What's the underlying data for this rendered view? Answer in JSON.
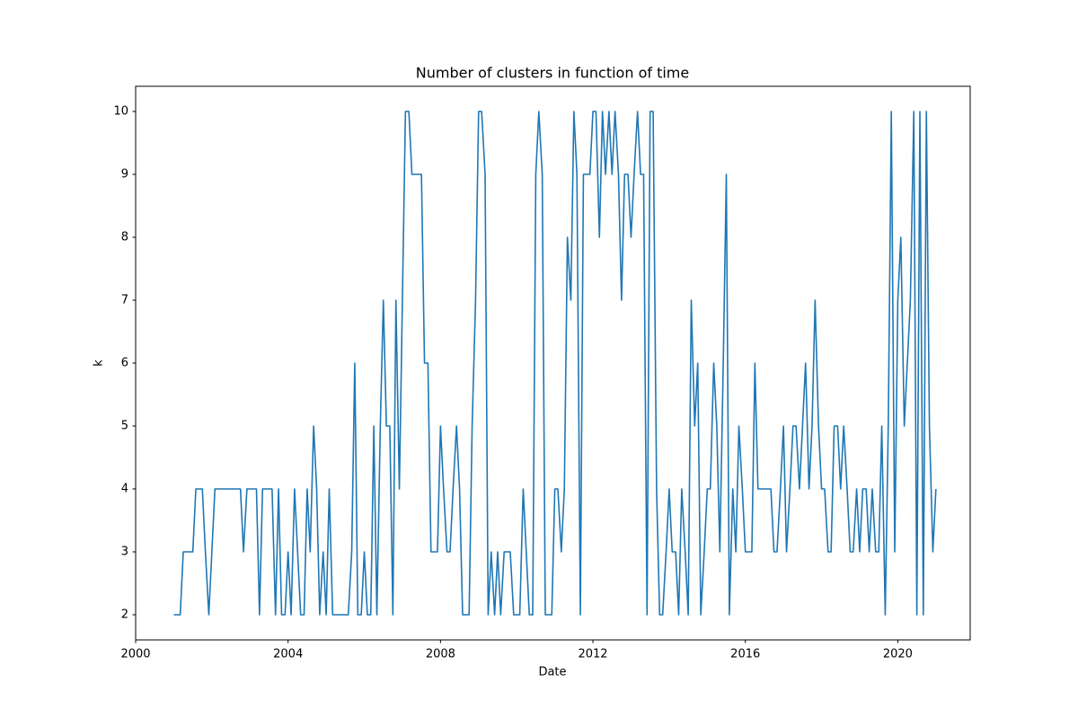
{
  "chart_data": {
    "type": "line",
    "title": "Number of clusters in function of time",
    "xlabel": "Date",
    "ylabel": "k",
    "x": [
      2001.0,
      2001.08,
      2001.17,
      2001.25,
      2001.33,
      2001.42,
      2001.5,
      2001.58,
      2001.67,
      2001.75,
      2001.83,
      2001.92,
      2002.0,
      2002.08,
      2002.17,
      2002.25,
      2002.33,
      2002.42,
      2002.5,
      2002.58,
      2002.67,
      2002.75,
      2002.83,
      2002.92,
      2003.0,
      2003.08,
      2003.17,
      2003.25,
      2003.33,
      2003.42,
      2003.5,
      2003.58,
      2003.67,
      2003.75,
      2003.83,
      2003.92,
      2004.0,
      2004.08,
      2004.17,
      2004.25,
      2004.33,
      2004.42,
      2004.5,
      2004.58,
      2004.67,
      2004.75,
      2004.83,
      2004.92,
      2005.0,
      2005.08,
      2005.17,
      2005.25,
      2005.33,
      2005.42,
      2005.5,
      2005.58,
      2005.67,
      2005.75,
      2005.83,
      2005.92,
      2006.0,
      2006.08,
      2006.17,
      2006.25,
      2006.33,
      2006.42,
      2006.5,
      2006.58,
      2006.67,
      2006.75,
      2006.83,
      2006.92,
      2007.0,
      2007.08,
      2007.17,
      2007.25,
      2007.33,
      2007.42,
      2007.5,
      2007.58,
      2007.67,
      2007.75,
      2007.83,
      2007.92,
      2008.0,
      2008.08,
      2008.17,
      2008.25,
      2008.33,
      2008.42,
      2008.5,
      2008.58,
      2008.67,
      2008.75,
      2008.83,
      2008.92,
      2009.0,
      2009.08,
      2009.17,
      2009.25,
      2009.33,
      2009.42,
      2009.5,
      2009.58,
      2009.67,
      2009.75,
      2009.83,
      2009.92,
      2010.0,
      2010.08,
      2010.17,
      2010.25,
      2010.33,
      2010.42,
      2010.5,
      2010.58,
      2010.67,
      2010.75,
      2010.83,
      2010.92,
      2011.0,
      2011.08,
      2011.17,
      2011.25,
      2011.33,
      2011.42,
      2011.5,
      2011.58,
      2011.67,
      2011.75,
      2011.83,
      2011.92,
      2012.0,
      2012.08,
      2012.17,
      2012.25,
      2012.33,
      2012.42,
      2012.5,
      2012.58,
      2012.67,
      2012.75,
      2012.83,
      2012.92,
      2013.0,
      2013.08,
      2013.17,
      2013.25,
      2013.33,
      2013.42,
      2013.5,
      2013.58,
      2013.67,
      2013.75,
      2013.83,
      2013.92,
      2014.0,
      2014.08,
      2014.17,
      2014.25,
      2014.33,
      2014.42,
      2014.5,
      2014.58,
      2014.67,
      2014.75,
      2014.83,
      2014.92,
      2015.0,
      2015.08,
      2015.17,
      2015.25,
      2015.33,
      2015.42,
      2015.5,
      2015.58,
      2015.67,
      2015.75,
      2015.83,
      2015.92,
      2016.0,
      2016.08,
      2016.17,
      2016.25,
      2016.33,
      2016.42,
      2016.5,
      2016.58,
      2016.67,
      2016.75,
      2016.83,
      2016.92,
      2017.0,
      2017.08,
      2017.17,
      2017.25,
      2017.33,
      2017.42,
      2017.5,
      2017.58,
      2017.67,
      2017.75,
      2017.83,
      2017.92,
      2018.0,
      2018.08,
      2018.17,
      2018.25,
      2018.33,
      2018.42,
      2018.5,
      2018.58,
      2018.67,
      2018.75,
      2018.83,
      2018.92,
      2019.0,
      2019.08,
      2019.17,
      2019.25,
      2019.33,
      2019.42,
      2019.5,
      2019.58,
      2019.67,
      2019.75,
      2019.83,
      2019.92,
      2020.0,
      2020.08,
      2020.17,
      2020.25,
      2020.33,
      2020.42,
      2020.5,
      2020.58,
      2020.67,
      2020.75,
      2020.83,
      2020.92,
      2021.0
    ],
    "series": [
      {
        "name": "k",
        "color": "#1f77b4",
        "values": [
          2,
          2,
          2,
          3,
          3,
          3,
          3,
          4,
          4,
          4,
          3,
          2,
          3,
          4,
          4,
          4,
          4,
          4,
          4,
          4,
          4,
          4,
          3,
          4,
          4,
          4,
          4,
          2,
          4,
          4,
          4,
          4,
          2,
          4,
          2,
          2,
          3,
          2,
          4,
          3,
          2,
          2,
          4,
          3,
          5,
          4,
          2,
          3,
          2,
          4,
          2,
          2,
          2,
          2,
          2,
          2,
          3,
          6,
          2,
          2,
          3,
          2,
          2,
          5,
          2,
          5,
          7,
          5,
          5,
          2,
          7,
          4,
          7,
          10,
          10,
          9,
          9,
          9,
          9,
          6,
          6,
          3,
          3,
          3,
          5,
          4,
          3,
          3,
          4,
          5,
          4,
          2,
          2,
          2,
          5,
          7,
          10,
          10,
          9,
          2,
          3,
          2,
          3,
          2,
          3,
          3,
          3,
          2,
          2,
          2,
          4,
          3,
          2,
          2,
          9,
          10,
          9,
          2,
          2,
          2,
          4,
          4,
          3,
          4,
          8,
          7,
          10,
          9,
          2,
          9,
          9,
          9,
          10,
          10,
          8,
          10,
          9,
          10,
          9,
          10,
          9,
          7,
          9,
          9,
          8,
          9,
          10,
          9,
          9,
          2,
          10,
          10,
          4,
          2,
          2,
          3,
          4,
          3,
          3,
          2,
          4,
          3,
          2,
          7,
          5,
          6,
          2,
          3,
          4,
          4,
          6,
          5,
          3,
          6,
          9,
          2,
          4,
          3,
          5,
          4,
          3,
          3,
          3,
          6,
          4,
          4,
          4,
          4,
          4,
          3,
          3,
          4,
          5,
          3,
          4,
          5,
          5,
          4,
          5,
          6,
          4,
          5,
          7,
          5,
          4,
          4,
          3,
          3,
          5,
          5,
          4,
          5,
          4,
          3,
          3,
          4,
          3,
          4,
          4,
          3,
          4,
          3,
          3,
          5,
          2,
          5,
          10,
          3,
          7,
          8,
          5,
          6,
          7,
          10,
          2,
          10,
          2,
          10,
          5,
          3,
          4
        ]
      }
    ],
    "xlim": [
      2000,
      2021.9
    ],
    "xticks": [
      2000,
      2004,
      2008,
      2012,
      2016,
      2020
    ],
    "ylim": [
      1.6,
      10.4
    ],
    "yticks": [
      2,
      3,
      4,
      5,
      6,
      7,
      8,
      9,
      10
    ],
    "grid": false
  }
}
